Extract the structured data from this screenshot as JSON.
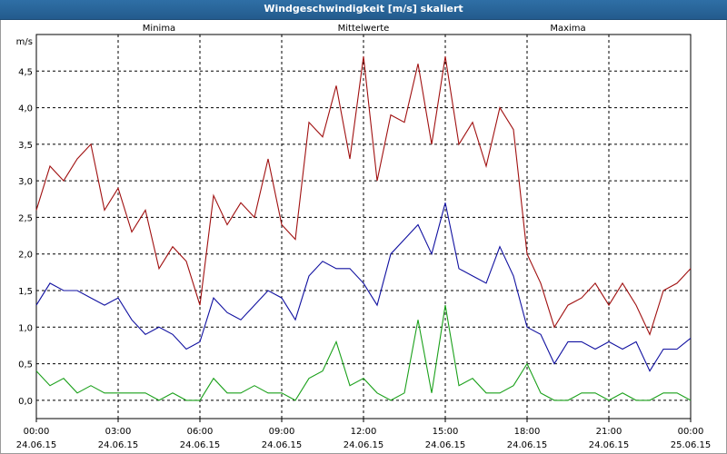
{
  "window": {
    "title": "Windgeschwindigkeit [m/s] skaliert"
  },
  "chart_data": {
    "type": "line",
    "title": "Windgeschwindigkeit [m/s] skaliert",
    "ylabel": "m/s",
    "ylim": [
      -0.25,
      5.0
    ],
    "xlim": [
      0,
      24
    ],
    "grid": true,
    "y_ticks": [
      "0,0",
      "0,5",
      "1,0",
      "1,5",
      "2,0",
      "2,5",
      "3,0",
      "3,5",
      "4,0",
      "4,5"
    ],
    "x_ticks": [
      {
        "time": "00:00",
        "date": "24.06.15"
      },
      {
        "time": "03:00",
        "date": "24.06.15"
      },
      {
        "time": "06:00",
        "date": "24.06.15"
      },
      {
        "time": "09:00",
        "date": "24.06.15"
      },
      {
        "time": "12:00",
        "date": "24.06.15"
      },
      {
        "time": "15:00",
        "date": "24.06.15"
      },
      {
        "time": "18:00",
        "date": "24.06.15"
      },
      {
        "time": "21:00",
        "date": "24.06.15"
      },
      {
        "time": "00:00",
        "date": "25.06.15"
      }
    ],
    "legend": [
      {
        "label": "Minima",
        "color": "#1aa01a"
      },
      {
        "label": "Mittelwerte",
        "color": "#1010a0"
      },
      {
        "label": "Maxima",
        "color": "#a01010"
      }
    ],
    "series": [
      {
        "name": "Maxima",
        "color": "#a01010",
        "x": [
          0,
          0.5,
          1,
          1.5,
          2,
          2.5,
          3,
          3.5,
          4,
          4.5,
          5,
          5.5,
          6,
          6.5,
          7,
          7.5,
          8,
          8.5,
          9,
          9.5,
          10,
          10.5,
          11,
          11.5,
          12,
          12.5,
          13,
          13.5,
          14,
          14.5,
          15,
          15.5,
          16,
          16.5,
          17,
          17.5,
          18,
          18.5,
          19,
          19.5,
          20,
          20.5,
          21,
          21.5,
          22,
          22.5,
          23,
          23.5,
          24
        ],
        "y": [
          2.6,
          3.2,
          3.0,
          3.3,
          3.5,
          2.6,
          2.9,
          2.3,
          2.6,
          1.8,
          2.1,
          1.9,
          1.3,
          2.8,
          2.4,
          2.7,
          2.5,
          3.3,
          2.4,
          2.2,
          3.8,
          3.6,
          4.3,
          3.3,
          4.7,
          3.0,
          3.9,
          3.8,
          4.6,
          3.5,
          4.7,
          3.5,
          3.8,
          3.2,
          4.0,
          3.7,
          2.0,
          1.6,
          1.0,
          1.3,
          1.4,
          1.6,
          1.3,
          1.6,
          1.3,
          0.9,
          1.5,
          1.6,
          1.8
        ]
      },
      {
        "name": "Mittelwerte",
        "color": "#1010a0",
        "x": [
          0,
          0.5,
          1,
          1.5,
          2,
          2.5,
          3,
          3.5,
          4,
          4.5,
          5,
          5.5,
          6,
          6.5,
          7,
          7.5,
          8,
          8.5,
          9,
          9.5,
          10,
          10.5,
          11,
          11.5,
          12,
          12.5,
          13,
          13.5,
          14,
          14.5,
          15,
          15.5,
          16,
          16.5,
          17,
          17.5,
          18,
          18.5,
          19,
          19.5,
          20,
          20.5,
          21,
          21.5,
          22,
          22.5,
          23,
          23.5,
          24
        ],
        "y": [
          1.3,
          1.6,
          1.5,
          1.5,
          1.4,
          1.3,
          1.4,
          1.1,
          0.9,
          1.0,
          0.9,
          0.7,
          0.8,
          1.4,
          1.2,
          1.1,
          1.3,
          1.5,
          1.4,
          1.1,
          1.7,
          1.9,
          1.8,
          1.8,
          1.6,
          1.3,
          2.0,
          2.2,
          2.4,
          2.0,
          2.7,
          1.8,
          1.7,
          1.6,
          2.1,
          1.7,
          1.0,
          0.9,
          0.5,
          0.8,
          0.8,
          0.7,
          0.8,
          0.7,
          0.8,
          0.4,
          0.7,
          0.7,
          0.85
        ]
      },
      {
        "name": "Minima",
        "color": "#1aa01a",
        "x": [
          0,
          0.5,
          1,
          1.5,
          2,
          2.5,
          3,
          3.5,
          4,
          4.5,
          5,
          5.5,
          6,
          6.5,
          7,
          7.5,
          8,
          8.5,
          9,
          9.5,
          10,
          10.5,
          11,
          11.5,
          12,
          12.5,
          13,
          13.5,
          14,
          14.5,
          15,
          15.5,
          16,
          16.5,
          17,
          17.5,
          18,
          18.5,
          19,
          19.5,
          20,
          20.5,
          21,
          21.5,
          22,
          22.5,
          23,
          23.5,
          24
        ],
        "y": [
          0.4,
          0.2,
          0.3,
          0.1,
          0.2,
          0.1,
          0.1,
          0.1,
          0.1,
          0.0,
          0.1,
          0.0,
          0.0,
          0.3,
          0.1,
          0.1,
          0.2,
          0.1,
          0.1,
          0.0,
          0.3,
          0.4,
          0.8,
          0.2,
          0.3,
          0.1,
          0.0,
          0.1,
          1.1,
          0.1,
          1.3,
          0.2,
          0.3,
          0.1,
          0.1,
          0.2,
          0.5,
          0.1,
          0.0,
          0.0,
          0.1,
          0.1,
          0.0,
          0.1,
          0.0,
          0.0,
          0.1,
          0.1,
          0.0
        ]
      }
    ]
  }
}
